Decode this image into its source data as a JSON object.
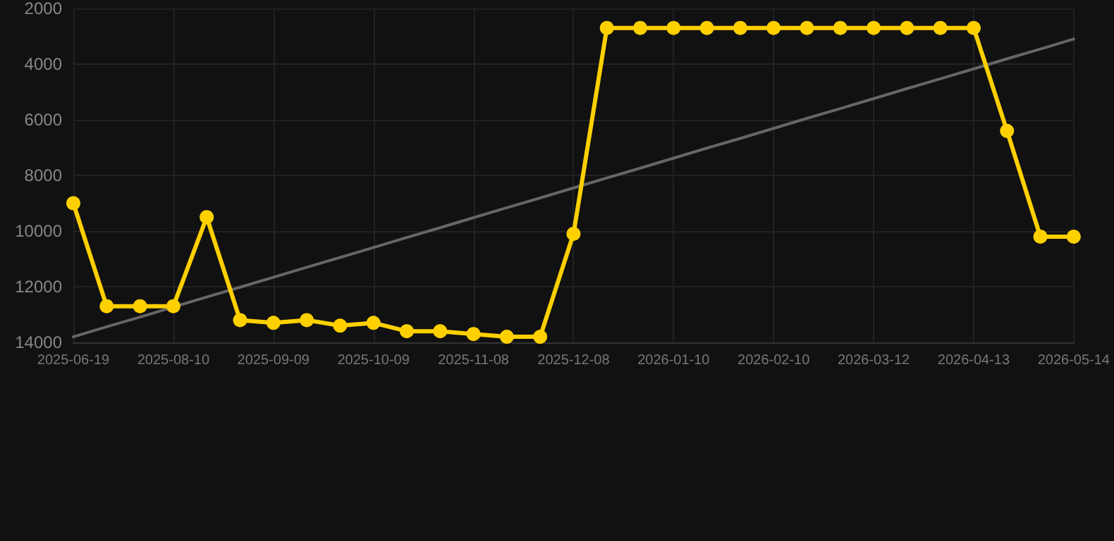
{
  "chart_data": {
    "type": "line",
    "categories": [
      "2025-06-19",
      null,
      null,
      "2025-08-10",
      null,
      null,
      "2025-09-09",
      null,
      null,
      "2025-10-09",
      null,
      null,
      "2025-11-08",
      null,
      null,
      "2025-12-08",
      null,
      null,
      "2026-01-10",
      null,
      null,
      "2026-02-10",
      null,
      null,
      "2026-03-12",
      null,
      null,
      "2026-04-13",
      null,
      null,
      "2026-05-14"
    ],
    "series": [
      {
        "color": "#ffd000",
        "values": [
          9000,
          12700,
          12700,
          12700,
          9500,
          13200,
          13300,
          13200,
          13400,
          13300,
          13600,
          13600,
          13700,
          13800,
          13800,
          10100,
          2700,
          2700,
          2700,
          2700,
          2700,
          2700,
          2700,
          2700,
          2700,
          2700,
          2700,
          2700,
          6400,
          10200,
          10200
        ]
      },
      {
        "type": "line",
        "color": "#666666",
        "values": [
          13800,
          13440,
          13090,
          12730,
          12370,
          12020,
          11660,
          11300,
          10950,
          10590,
          10230,
          9880,
          9520,
          9160,
          8810,
          8450,
          8090,
          7740,
          7380,
          7020,
          6670,
          6310,
          5950,
          5600,
          5240,
          4880,
          4530,
          4170,
          3810,
          3460,
          3100
        ],
        "marker": "none",
        "line_style": "solid"
      }
    ],
    "ylim": [
      14000,
      2000
    ],
    "yticks": [
      2000,
      4000,
      6000,
      8000,
      10000,
      12000,
      14000
    ],
    "grid": true,
    "marker": "circle",
    "line_style": "solid"
  }
}
